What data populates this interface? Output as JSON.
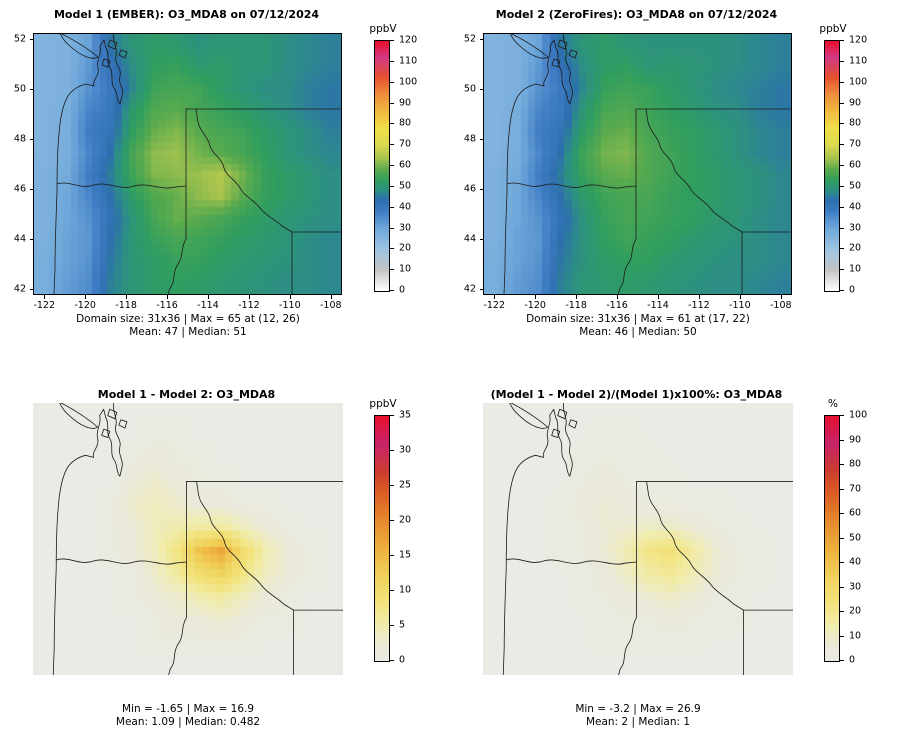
{
  "chart_data": [
    {
      "type": "heatmap",
      "title": "Model 1 (EMBER): O3_MDA8 on 07/12/2024",
      "colorbar_title": "ppbV",
      "vmin": 0,
      "vmax": 120,
      "colorbar_ticks": [
        0,
        10,
        20,
        30,
        40,
        50,
        60,
        70,
        80,
        90,
        100,
        110,
        120
      ],
      "x_ticks": [
        -122,
        -120,
        -118,
        -116,
        -114,
        -112,
        -110,
        -108
      ],
      "y_ticks": [
        42,
        44,
        46,
        48,
        50,
        52
      ],
      "x_range": [
        -122.5,
        -107.5
      ],
      "y_range": [
        41.8,
        52.2
      ],
      "stats_line1": "Domain size: 31x36 | Max = 65 at (12, 26)",
      "stats_line2": "Mean: 47 |  Median: 51",
      "palette": [
        [
          0,
          "#ffffff"
        ],
        [
          10,
          "#c3c3c3"
        ],
        [
          20,
          "#9dc4e4"
        ],
        [
          30,
          "#6fa8da"
        ],
        [
          38,
          "#3f7cc4"
        ],
        [
          44,
          "#2d6fae"
        ],
        [
          48,
          "#2d8f85"
        ],
        [
          53,
          "#2f9e5f"
        ],
        [
          58,
          "#58aa4e"
        ],
        [
          64,
          "#a9c44e"
        ],
        [
          70,
          "#dcd94f"
        ],
        [
          78,
          "#f0df49"
        ],
        [
          86,
          "#f0bb41"
        ],
        [
          95,
          "#ee8a3b"
        ],
        [
          103,
          "#e55130"
        ],
        [
          112,
          "#d33a84"
        ],
        [
          120,
          "#e8102e"
        ]
      ],
      "grid": [
        [
          26,
          27,
          31,
          45,
          50,
          52,
          51,
          49,
          50,
          50,
          50,
          48,
          47,
          46
        ],
        [
          26,
          27,
          33,
          42,
          48,
          53,
          54,
          51,
          52,
          50,
          50,
          48,
          47,
          46
        ],
        [
          26,
          27,
          34,
          39,
          47,
          55,
          56,
          55,
          52,
          50,
          48,
          48,
          46,
          45
        ],
        [
          26,
          28,
          36,
          40,
          51,
          57,
          58,
          56,
          54,
          52,
          50,
          48,
          46,
          45
        ],
        [
          26,
          28,
          38,
          42,
          53,
          59,
          61,
          58,
          56,
          55,
          52,
          50,
          48,
          46
        ],
        [
          26,
          28,
          36,
          44,
          56,
          62,
          63,
          60,
          58,
          56,
          53,
          50,
          48,
          47
        ],
        [
          27,
          29,
          38,
          46,
          55,
          61,
          62,
          63,
          65,
          60,
          54,
          52,
          50,
          48
        ],
        [
          27,
          30,
          36,
          44,
          52,
          57,
          59,
          62,
          64,
          58,
          54,
          52,
          50,
          48
        ],
        [
          27,
          30,
          34,
          42,
          50,
          56,
          59,
          58,
          56,
          54,
          52,
          50,
          49,
          48
        ],
        [
          27,
          31,
          33,
          44,
          50,
          54,
          56,
          55,
          54,
          52,
          51,
          50,
          48,
          47
        ],
        [
          28,
          31,
          34,
          45,
          50,
          52,
          54,
          54,
          52,
          51,
          50,
          49,
          48,
          47
        ],
        [
          28,
          32,
          35,
          46,
          50,
          52,
          53,
          52,
          51,
          50,
          49,
          48,
          48,
          47
        ]
      ]
    },
    {
      "type": "heatmap",
      "title": "Model 2 (ZeroFires): O3_MDA8 on 07/12/2024",
      "colorbar_title": "ppbV",
      "vmin": 0,
      "vmax": 120,
      "colorbar_ticks": [
        0,
        10,
        20,
        30,
        40,
        50,
        60,
        70,
        80,
        90,
        100,
        110,
        120
      ],
      "x_ticks": [
        -122,
        -120,
        -118,
        -116,
        -114,
        -112,
        -110,
        -108
      ],
      "y_ticks": [
        42,
        44,
        46,
        48,
        50,
        52
      ],
      "x_range": [
        -122.5,
        -107.5
      ],
      "y_range": [
        41.8,
        52.2
      ],
      "stats_line1": "Domain size: 31x36 | Max = 61 at (17, 22)",
      "stats_line2": "Mean: 46 |  Median: 50",
      "palette": [
        [
          0,
          "#ffffff"
        ],
        [
          10,
          "#c3c3c3"
        ],
        [
          20,
          "#9dc4e4"
        ],
        [
          30,
          "#6fa8da"
        ],
        [
          38,
          "#3f7cc4"
        ],
        [
          44,
          "#2d6fae"
        ],
        [
          48,
          "#2d8f85"
        ],
        [
          53,
          "#2f9e5f"
        ],
        [
          58,
          "#58aa4e"
        ],
        [
          64,
          "#a9c44e"
        ],
        [
          70,
          "#dcd94f"
        ],
        [
          78,
          "#f0df49"
        ],
        [
          86,
          "#f0bb41"
        ],
        [
          95,
          "#ee8a3b"
        ],
        [
          103,
          "#e55130"
        ],
        [
          112,
          "#d33a84"
        ],
        [
          120,
          "#e8102e"
        ]
      ],
      "grid": [
        [
          26,
          27,
          31,
          45,
          50,
          52,
          50,
          49,
          49,
          49,
          49,
          48,
          47,
          46
        ],
        [
          26,
          27,
          33,
          42,
          48,
          52,
          53,
          50,
          51,
          50,
          49,
          48,
          47,
          46
        ],
        [
          26,
          27,
          34,
          39,
          47,
          54,
          55,
          54,
          52,
          50,
          48,
          47,
          46,
          45
        ],
        [
          26,
          28,
          36,
          40,
          50,
          56,
          57,
          55,
          53,
          51,
          49,
          48,
          46,
          45
        ],
        [
          26,
          28,
          38,
          42,
          52,
          58,
          59,
          56,
          54,
          53,
          51,
          49,
          47,
          46
        ],
        [
          26,
          28,
          36,
          44,
          55,
          60,
          61,
          57,
          55,
          53,
          51,
          49,
          47,
          46
        ],
        [
          27,
          29,
          38,
          46,
          54,
          58,
          59,
          57,
          55,
          53,
          52,
          50,
          49,
          47
        ],
        [
          27,
          30,
          36,
          44,
          51,
          55,
          56,
          56,
          54,
          53,
          52,
          50,
          49,
          47
        ],
        [
          27,
          30,
          34,
          42,
          49,
          54,
          56,
          55,
          54,
          53,
          51,
          50,
          48,
          47
        ],
        [
          27,
          31,
          33,
          44,
          49,
          53,
          55,
          54,
          53,
          51,
          50,
          49,
          48,
          47
        ],
        [
          28,
          31,
          34,
          45,
          49,
          52,
          53,
          53,
          51,
          50,
          49,
          48,
          48,
          47
        ],
        [
          28,
          32,
          35,
          46,
          50,
          51,
          52,
          51,
          50,
          49,
          48,
          48,
          47,
          46
        ]
      ]
    },
    {
      "type": "heatmap",
      "title": "Model 1 - Model 2: O3_MDA8",
      "colorbar_title": "ppbV",
      "vmin": 0,
      "vmax": 35,
      "colorbar_ticks": [
        0,
        5,
        10,
        15,
        20,
        25,
        30,
        35
      ],
      "x_range": [
        -122.5,
        -107.5
      ],
      "y_range": [
        41.8,
        52.2
      ],
      "stats_line1": "Min = -1.65 | Max = 16.9",
      "stats_line2": "Mean: 1.09 |  Median: 0.482",
      "palette": [
        [
          0,
          "#ebeae4"
        ],
        [
          2,
          "#eae9d9"
        ],
        [
          5,
          "#f0ecae"
        ],
        [
          8,
          "#f2e481"
        ],
        [
          12,
          "#f0d35c"
        ],
        [
          16,
          "#eeb03e"
        ],
        [
          20,
          "#e68a2e"
        ],
        [
          24,
          "#da5f23"
        ],
        [
          27,
          "#cd3d2e"
        ],
        [
          31,
          "#c7256b"
        ],
        [
          35,
          "#e8102e"
        ]
      ],
      "grid": [
        [
          0,
          0,
          0,
          0,
          0,
          0,
          0,
          0,
          0,
          0,
          0,
          0,
          0,
          0
        ],
        [
          0,
          0,
          0,
          0,
          0,
          1,
          1,
          0,
          0,
          0,
          0,
          0,
          0,
          0
        ],
        [
          0,
          0,
          0,
          0,
          1,
          2,
          1,
          1,
          0,
          0,
          0,
          0,
          0,
          0
        ],
        [
          0,
          0,
          0,
          0,
          2,
          3,
          2,
          1,
          1,
          0,
          0,
          0,
          0,
          0
        ],
        [
          0,
          0,
          0,
          1,
          3,
          4,
          3,
          2,
          2,
          1,
          1,
          0,
          0,
          0
        ],
        [
          0,
          0,
          0,
          1,
          2,
          4,
          5,
          6,
          6,
          4,
          2,
          1,
          0,
          0
        ],
        [
          0,
          0,
          0,
          1,
          2,
          4,
          8,
          14,
          17,
          10,
          5,
          2,
          1,
          0
        ],
        [
          0,
          0,
          0,
          0,
          1,
          3,
          6,
          10,
          12,
          8,
          4,
          2,
          1,
          0
        ],
        [
          0,
          0,
          0,
          0,
          1,
          2,
          3,
          5,
          6,
          4,
          2,
          1,
          0,
          0
        ],
        [
          0,
          0,
          0,
          0,
          0,
          1,
          2,
          2,
          3,
          2,
          1,
          1,
          0,
          0
        ],
        [
          0,
          0,
          0,
          0,
          0,
          1,
          1,
          1,
          1,
          1,
          0,
          0,
          0,
          0
        ],
        [
          0,
          0,
          0,
          0,
          0,
          0,
          0,
          0,
          0,
          0,
          0,
          0,
          0,
          0
        ]
      ]
    },
    {
      "type": "heatmap",
      "title": "(Model 1 - Model 2)/(Model 1)x100%: O3_MDA8",
      "colorbar_title": "%",
      "vmin": 0,
      "vmax": 100,
      "colorbar_ticks": [
        0,
        10,
        20,
        30,
        40,
        50,
        60,
        70,
        80,
        90,
        100
      ],
      "x_range": [
        -122.5,
        -107.5
      ],
      "y_range": [
        41.8,
        52.2
      ],
      "stats_line1": "Min = -3.2 | Max = 26.9",
      "stats_line2": "Mean: 2 |  Median: 1",
      "palette": [
        [
          0,
          "#ebeae4"
        ],
        [
          6,
          "#eae9d9"
        ],
        [
          14,
          "#f0ecae"
        ],
        [
          23,
          "#f2e481"
        ],
        [
          34,
          "#f0d35c"
        ],
        [
          46,
          "#eeb03e"
        ],
        [
          57,
          "#e68a2e"
        ],
        [
          68,
          "#da5f23"
        ],
        [
          78,
          "#cd3d2e"
        ],
        [
          89,
          "#c7256b"
        ],
        [
          100,
          "#e8102e"
        ]
      ],
      "grid": [
        [
          0,
          0,
          0,
          0,
          0,
          0,
          0,
          0,
          0,
          0,
          0,
          0,
          0,
          0
        ],
        [
          0,
          0,
          0,
          0,
          0,
          2,
          2,
          0,
          0,
          0,
          0,
          0,
          0,
          0
        ],
        [
          0,
          0,
          0,
          0,
          2,
          3,
          2,
          2,
          0,
          0,
          0,
          0,
          0,
          0
        ],
        [
          0,
          0,
          0,
          0,
          3,
          5,
          3,
          2,
          2,
          0,
          0,
          0,
          0,
          0
        ],
        [
          0,
          0,
          0,
          2,
          5,
          7,
          5,
          3,
          3,
          2,
          2,
          0,
          0,
          0
        ],
        [
          0,
          0,
          0,
          2,
          3,
          7,
          8,
          10,
          10,
          7,
          3,
          2,
          0,
          0
        ],
        [
          0,
          0,
          0,
          2,
          3,
          7,
          13,
          22,
          26,
          16,
          8,
          3,
          2,
          0
        ],
        [
          0,
          0,
          0,
          0,
          2,
          5,
          10,
          16,
          19,
          13,
          7,
          3,
          2,
          0
        ],
        [
          0,
          0,
          0,
          0,
          2,
          3,
          5,
          8,
          10,
          7,
          3,
          2,
          0,
          0
        ],
        [
          0,
          0,
          0,
          0,
          0,
          2,
          3,
          3,
          5,
          3,
          2,
          2,
          0,
          0
        ],
        [
          0,
          0,
          0,
          0,
          0,
          2,
          2,
          2,
          2,
          2,
          0,
          0,
          0,
          0
        ],
        [
          0,
          0,
          0,
          0,
          0,
          0,
          0,
          0,
          0,
          0,
          0,
          0,
          0,
          0
        ]
      ]
    }
  ]
}
